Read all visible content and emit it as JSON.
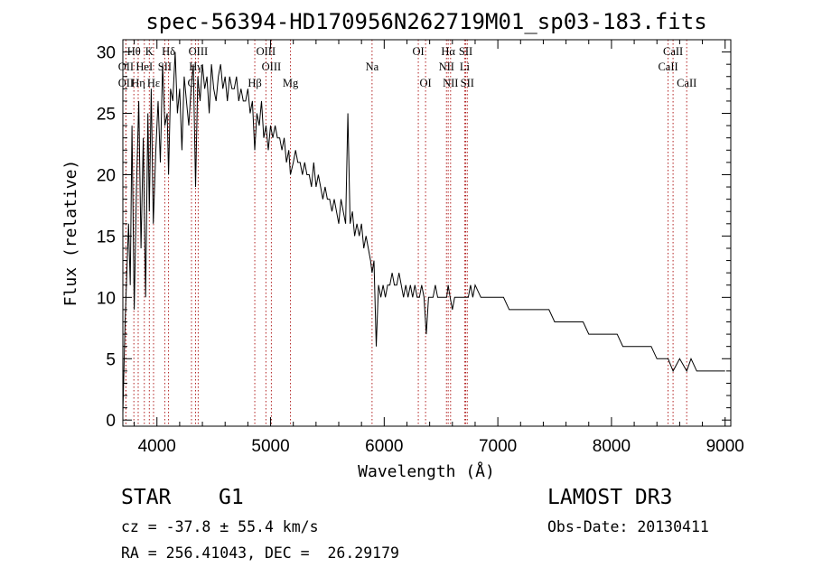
{
  "chart_data": {
    "type": "line",
    "title": "spec-56394-HD170956N262719M01_sp03-183.fits",
    "xlabel": "Wavelength (Å)",
    "ylabel": "Flux (relative)",
    "xlim": [
      3700,
      9050
    ],
    "ylim": [
      -0.5,
      31
    ],
    "x_ticks": [
      4000,
      5000,
      6000,
      7000,
      8000,
      9000
    ],
    "y_ticks": [
      0,
      5,
      10,
      15,
      20,
      25,
      30
    ],
    "series": [
      {
        "name": "spectrum",
        "color": "#000000",
        "x": [
          3700,
          3720,
          3735,
          3750,
          3765,
          3780,
          3800,
          3820,
          3840,
          3860,
          3880,
          3900,
          3920,
          3933,
          3950,
          3968,
          3990,
          4010,
          4030,
          4050,
          4070,
          4090,
          4102,
          4120,
          4140,
          4160,
          4180,
          4200,
          4220,
          4240,
          4260,
          4280,
          4300,
          4320,
          4340,
          4360,
          4380,
          4400,
          4420,
          4440,
          4460,
          4480,
          4500,
          4520,
          4540,
          4560,
          4580,
          4600,
          4620,
          4640,
          4660,
          4680,
          4700,
          4720,
          4740,
          4760,
          4780,
          4800,
          4820,
          4840,
          4861,
          4880,
          4900,
          4920,
          4940,
          4960,
          4980,
          5000,
          5020,
          5040,
          5060,
          5080,
          5100,
          5120,
          5140,
          5160,
          5175,
          5200,
          5220,
          5240,
          5260,
          5280,
          5300,
          5320,
          5340,
          5360,
          5380,
          5400,
          5420,
          5440,
          5460,
          5480,
          5500,
          5520,
          5540,
          5560,
          5580,
          5600,
          5620,
          5640,
          5660,
          5680,
          5700,
          5720,
          5740,
          5760,
          5780,
          5800,
          5820,
          5840,
          5860,
          5880,
          5893,
          5910,
          5930,
          5950,
          5970,
          5990,
          6010,
          6030,
          6050,
          6070,
          6090,
          6110,
          6130,
          6150,
          6170,
          6190,
          6210,
          6230,
          6250,
          6270,
          6290,
          6310,
          6330,
          6350,
          6370,
          6390,
          6410,
          6430,
          6450,
          6470,
          6490,
          6510,
          6530,
          6550,
          6563,
          6580,
          6600,
          6620,
          6640,
          6660,
          6680,
          6700,
          6720,
          6740,
          6760,
          6780,
          6800,
          6850,
          6900,
          6950,
          7000,
          7050,
          7100,
          7150,
          7200,
          7250,
          7300,
          7350,
          7400,
          7450,
          7500,
          7550,
          7600,
          7650,
          7700,
          7750,
          7800,
          7850,
          7900,
          7950,
          8000,
          8050,
          8100,
          8150,
          8200,
          8250,
          8300,
          8350,
          8400,
          8450,
          8498,
          8542,
          8600,
          8662,
          8700,
          8750,
          8800,
          8850,
          8900,
          8950,
          9000
        ],
        "y": [
          0.5,
          8,
          12,
          16,
          11,
          24,
          9,
          19,
          26,
          14,
          23,
          10,
          25,
          17,
          27,
          16,
          22,
          26,
          21,
          29,
          24,
          25,
          20,
          27,
          26,
          30,
          25,
          27,
          22,
          28,
          26,
          24,
          27,
          29,
          19,
          28,
          26,
          29,
          27,
          28,
          25,
          29,
          27,
          26,
          28,
          29,
          27,
          28,
          26,
          28,
          27,
          27,
          28,
          26,
          27,
          26,
          26,
          27,
          25,
          26,
          22,
          25,
          24,
          26,
          23,
          24,
          22,
          24,
          23,
          24,
          23,
          23,
          22,
          23,
          21,
          22,
          20,
          21,
          22,
          21,
          21,
          20,
          21,
          20,
          20,
          19,
          21,
          19,
          20,
          19,
          18,
          19,
          18,
          18,
          17,
          18,
          17,
          16,
          18,
          17,
          16,
          25,
          16,
          17,
          15,
          16,
          15,
          16,
          14,
          15,
          14,
          13,
          12,
          13,
          6,
          11,
          10,
          11,
          10,
          11,
          11,
          12,
          11,
          11,
          12,
          11,
          10,
          11,
          10,
          11,
          10,
          11,
          10,
          10,
          11,
          10,
          7,
          10,
          10,
          10,
          11,
          10,
          10,
          10,
          10,
          10,
          11,
          10,
          9,
          10,
          10,
          10,
          10,
          10,
          10,
          10,
          11,
          10,
          11,
          10,
          10,
          10,
          10,
          10,
          9,
          9,
          9,
          9,
          9,
          9,
          9,
          9,
          8,
          8,
          8,
          8,
          8,
          8,
          7,
          7,
          7,
          7,
          7,
          7,
          6,
          6,
          6,
          6,
          6,
          6,
          5,
          5,
          5,
          4,
          5,
          4,
          5,
          4,
          4,
          4,
          4,
          4,
          4
        ]
      }
    ],
    "lines": [
      {
        "name": "Hθ",
        "wl": 3797,
        "row": 1
      },
      {
        "name": "OII",
        "wl": 3727,
        "row": 2
      },
      {
        "name": "Hη",
        "wl": 3835,
        "row": 3
      },
      {
        "name": "OII",
        "wl": 3727,
        "row": 3
      },
      {
        "name": "HeI",
        "wl": 3889,
        "row": 2
      },
      {
        "name": "K",
        "wl": 3933,
        "row": 1
      },
      {
        "name": "SII",
        "wl": 4069,
        "row": 2
      },
      {
        "name": "Hε",
        "wl": 3970,
        "row": 3
      },
      {
        "name": "Hδ",
        "wl": 4102,
        "row": 1
      },
      {
        "name": "OIII",
        "wl": 4363,
        "row": 1
      },
      {
        "name": "Hγ",
        "wl": 4340,
        "row": 2
      },
      {
        "name": "G",
        "wl": 4304,
        "row": 3
      },
      {
        "name": "OIII",
        "wl": 4959,
        "row": 1
      },
      {
        "name": "OIII",
        "wl": 5007,
        "row": 2
      },
      {
        "name": "Hβ",
        "wl": 4861,
        "row": 3
      },
      {
        "name": "Mg",
        "wl": 5175,
        "row": 3
      },
      {
        "name": "Na",
        "wl": 5893,
        "row": 2
      },
      {
        "name": "OI",
        "wl": 6300,
        "row": 1
      },
      {
        "name": "OI",
        "wl": 6364,
        "row": 3
      },
      {
        "name": "Hα",
        "wl": 6563,
        "row": 1
      },
      {
        "name": "NII",
        "wl": 6548,
        "row": 2
      },
      {
        "name": "NII",
        "wl": 6584,
        "row": 3
      },
      {
        "name": "SII",
        "wl": 6717,
        "row": 1
      },
      {
        "name": "Li",
        "wl": 6708,
        "row": 2
      },
      {
        "name": "SII",
        "wl": 6731,
        "row": 3
      },
      {
        "name": "CaII",
        "wl": 8542,
        "row": 1
      },
      {
        "name": "CaII",
        "wl": 8498,
        "row": 2
      },
      {
        "name": "CaII",
        "wl": 8662,
        "row": 3
      }
    ]
  },
  "footer": {
    "object_class": "STAR",
    "subclass": "G1",
    "survey": "LAMOST DR3",
    "velocity": "cz = -37.8 ± 55.4 km/s",
    "obs_date": "Obs-Date: 20130411",
    "coords": "RA = 256.41043, DEC =  26.29179"
  },
  "colors": {
    "line_marker": "#b22222",
    "spectrum": "#000000"
  }
}
